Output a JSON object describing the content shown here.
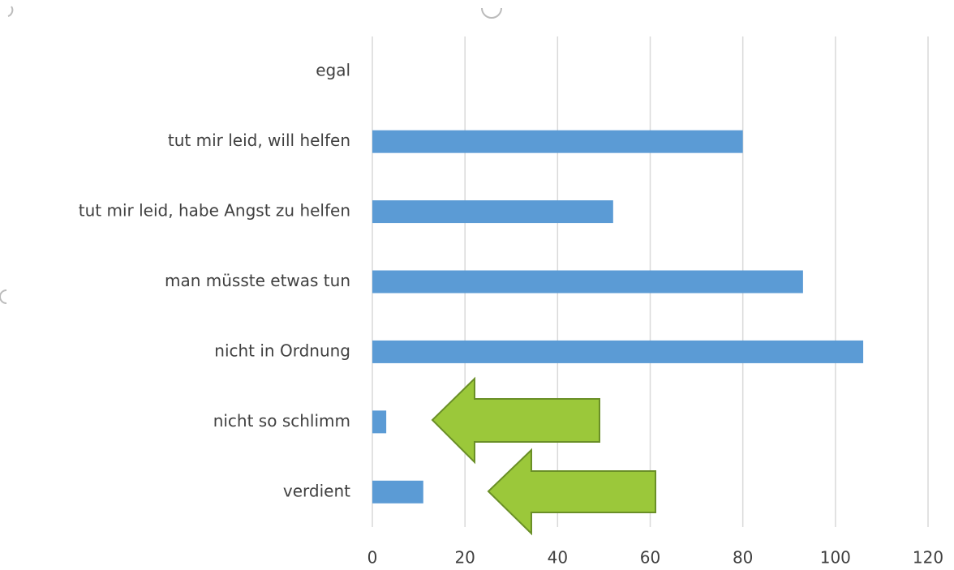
{
  "chart_data": {
    "type": "bar",
    "orientation": "horizontal",
    "categories": [
      "egal",
      "tut mir leid, will helfen",
      "tut mir leid, habe Angst zu helfen",
      "man müsste etwas tun",
      "nicht in Ordnung",
      "nicht so schlimm",
      "verdient"
    ],
    "values": [
      0,
      80,
      52,
      93,
      106,
      3,
      11
    ],
    "color": "#5b9bd5",
    "xlim": [
      0,
      120
    ],
    "xticks": [
      0,
      20,
      40,
      60,
      80,
      100,
      120
    ],
    "grid": true
  }
}
